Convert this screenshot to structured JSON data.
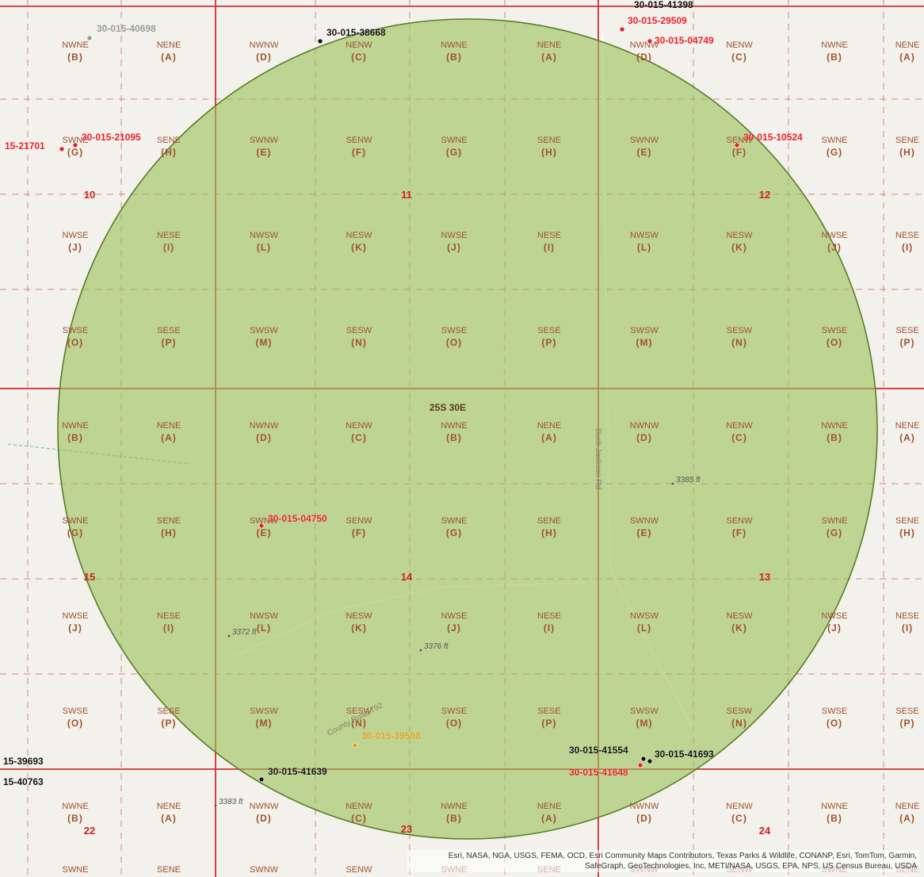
{
  "map": {
    "township_label": "25S 30E",
    "colors": {
      "background": "#f2f1ec",
      "section_line": "#cc3333",
      "quarter_line": "#c8715a",
      "radius_fill": "#9cc25a",
      "radius_stroke": "#5a7d2a",
      "qq_label": "#a0522d",
      "well_red": "#e8202a",
      "well_black": "#111111",
      "well_brown": "#9b3a1e",
      "well_orange": "#e0a020",
      "well_gray": "#999999"
    },
    "quarter_quarter_columns": [
      [
        "NWNE",
        "(B)"
      ],
      [
        "NENE",
        "(A)"
      ],
      [
        "NWNW",
        "(D)"
      ],
      [
        "NENW",
        "(C)"
      ],
      [
        "NWNE",
        "(B)"
      ],
      [
        "NENE",
        "(A)"
      ],
      [
        "NWNW",
        "(D)"
      ],
      [
        "NENW",
        "(C)"
      ],
      [
        "NWNE",
        "(B)"
      ],
      [
        "NENE",
        "(A)"
      ]
    ],
    "quarter_quarter_grid": [
      [
        "NWNE",
        "NENE",
        "NWNW",
        "NENW",
        "NWNE",
        "NENE",
        "NWNW",
        "NENW",
        "NWNE",
        "NENE"
      ],
      [
        "SWNE",
        "SENE",
        "SWNW",
        "SENW",
        "SWNE",
        "SENE",
        "SWNW",
        "SENW",
        "SWNE",
        "SENE"
      ],
      [
        "NWSE",
        "NESE",
        "NWSW",
        "NESW",
        "NWSE",
        "NESE",
        "NWSW",
        "NESW",
        "NWSE",
        "NESE"
      ],
      [
        "SWSE",
        "SESE",
        "SWSW",
        "SESW",
        "SWSE",
        "SESE",
        "SWSW",
        "SESW",
        "SWSE",
        "SESE"
      ],
      [
        "NWNE",
        "NENE",
        "NWNW",
        "NENW",
        "NWNE",
        "NENE",
        "NWNW",
        "NENW",
        "NWNE",
        "NENE"
      ],
      [
        "SWNE",
        "SENE",
        "SWNW",
        "SENW",
        "SWNE",
        "SENE",
        "SWNW",
        "SENW",
        "SWNE",
        "SENE"
      ],
      [
        "NWSE",
        "NESE",
        "NWSW",
        "NESW",
        "NWSE",
        "NESE",
        "NWSW",
        "NESW",
        "NWSE",
        "NESE"
      ],
      [
        "SWSE",
        "SESE",
        "SWSW",
        "SESW",
        "SWSE",
        "SESE",
        "SWSW",
        "SESW",
        "SWSE",
        "SESE"
      ],
      [
        "NWNE",
        "NENE",
        "NWNW",
        "NENW",
        "NWNE",
        "NENE",
        "NWNW",
        "NENW",
        "NWNE",
        "NENE"
      ]
    ],
    "quarter_quarter_letters": [
      [
        "(B)",
        "(A)",
        "(D)",
        "(C)",
        "(B)",
        "(A)",
        "(D)",
        "(C)",
        "(B)",
        "(A)"
      ],
      [
        "(G)",
        "(H)",
        "(E)",
        "(F)",
        "(G)",
        "(H)",
        "(E)",
        "(F)",
        "(G)",
        "(H)"
      ],
      [
        "(J)",
        "(I)",
        "(L)",
        "(K)",
        "(J)",
        "(I)",
        "(L)",
        "(K)",
        "(J)",
        "(I)"
      ],
      [
        "(O)",
        "(P)",
        "(M)",
        "(N)",
        "(O)",
        "(P)",
        "(M)",
        "(N)",
        "(O)",
        "(P)"
      ],
      [
        "(B)",
        "(A)",
        "(D)",
        "(C)",
        "(B)",
        "(A)",
        "(D)",
        "(C)",
        "(B)",
        "(A)"
      ],
      [
        "(G)",
        "(H)",
        "(E)",
        "(F)",
        "(G)",
        "(H)",
        "(E)",
        "(F)",
        "(G)",
        "(H)"
      ],
      [
        "(J)",
        "(I)",
        "(L)",
        "(K)",
        "(J)",
        "(I)",
        "(L)",
        "(K)",
        "(J)",
        "(I)"
      ],
      [
        "(O)",
        "(P)",
        "(M)",
        "(N)",
        "(O)",
        "(P)",
        "(M)",
        "(N)",
        "(O)",
        "(P)"
      ],
      [
        "(B)",
        "(A)",
        "(D)",
        "(C)",
        "(B)",
        "(A)",
        "(D)",
        "(C)",
        "(B)",
        "(A)"
      ]
    ],
    "bottom_row_partial": [
      "SWNE",
      "SENE",
      "SWNW",
      "SENW",
      "SWNE",
      "SENE",
      "SWNW",
      "SENW",
      "SWNE",
      "SENE"
    ],
    "section_numbers": [
      "10",
      "11",
      "12",
      "15",
      "14",
      "13",
      "22",
      "23",
      "24"
    ],
    "wells": [
      {
        "api": "30-015-40698",
        "style": "gray"
      },
      {
        "api": "30-015-38668",
        "style": "black"
      },
      {
        "api": "30-015-29509",
        "style": "red"
      },
      {
        "api": "30-015-04749",
        "style": "red"
      },
      {
        "api": "15-21701",
        "style": "red"
      },
      {
        "api": "30-015-21095",
        "style": "red"
      },
      {
        "api": "30-015-10524",
        "style": "red"
      },
      {
        "api": "30-015-04750",
        "style": "red"
      },
      {
        "api": "30-015-39508",
        "style": "orange"
      },
      {
        "api": "30-015-41554",
        "style": "black"
      },
      {
        "api": "30-015-41693",
        "style": "black"
      },
      {
        "api": "30-015-41648",
        "style": "red"
      },
      {
        "api": "30-015-41639",
        "style": "black"
      },
      {
        "api": "15-39693",
        "style": "black"
      },
      {
        "api": "15-40763",
        "style": "black"
      },
      {
        "api": "30-015-41398",
        "style": "black"
      }
    ],
    "elevations": [
      "3385 ft",
      "3372 ft",
      "3376 ft",
      "3383 ft"
    ],
    "roads": [
      "Buck Jackson Rd",
      "County Road 792"
    ],
    "attribution": "Esri, NASA, NGA, USGS, FEMA, OCD, Esri Community Maps Contributors, Texas Parks & Wildlife, CONANP, Esri, TomTom, Garmin, SafeGraph, GeoTechnologies, Inc, METI/NASA, USGS, EPA, NPS, US Census Bureau, USDA"
  }
}
